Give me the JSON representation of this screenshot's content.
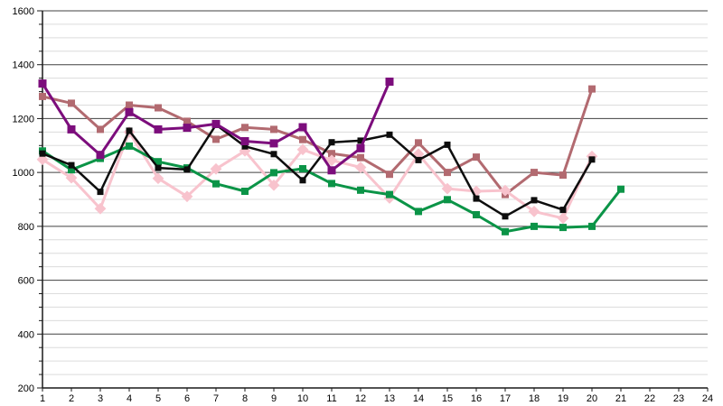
{
  "chart_data": {
    "type": "line",
    "title": "",
    "xlabel": "",
    "ylabel": "",
    "xlim": [
      1,
      24
    ],
    "ylim": [
      200,
      1600
    ],
    "x_tick_labels": [
      "1",
      "2",
      "3",
      "4",
      "5",
      "6",
      "7",
      "8",
      "9",
      "10",
      "11",
      "12",
      "13",
      "14",
      "15",
      "16",
      "17",
      "18",
      "19",
      "20",
      "21",
      "22",
      "23",
      "24"
    ],
    "y_tick_labels": [
      "200",
      "400",
      "600",
      "800",
      "1000",
      "1200",
      "1400",
      "1600"
    ],
    "y_major_step": 200,
    "y_minor_step": 50,
    "grid": {
      "minor_color": "#dcdcdc",
      "major_color": "#404040",
      "axis_color": "#1a1a1a"
    },
    "legend": "none",
    "x_start": 1,
    "series": [
      {
        "name": "rosybrown",
        "color": "#b26a70",
        "marker": "square",
        "values": [
          1282,
          1257,
          1160,
          1250,
          1240,
          1190,
          1123,
          1167,
          1160,
          1122,
          1070,
          1055,
          993,
          1110,
          1000,
          1057,
          918,
          1000,
          990,
          1310
        ]
      },
      {
        "name": "pink",
        "color": "#f8c3cd",
        "marker": "diamond",
        "values": [
          1048,
          980,
          866,
          1150,
          978,
          911,
          1013,
          1080,
          953,
          1085,
          1045,
          1019,
          905,
          1068,
          940,
          930,
          933,
          855,
          830,
          1060
        ]
      },
      {
        "name": "green",
        "color": "#0b9447",
        "marker": "square",
        "values": [
          1080,
          1010,
          1052,
          1098,
          1040,
          1017,
          958,
          930,
          999,
          1014,
          959,
          934,
          918,
          855,
          899,
          843,
          780,
          800,
          796,
          800,
          938
        ]
      },
      {
        "name": "black",
        "color": "#0d0d0d",
        "marker": "square",
        "values": [
          1070,
          1027,
          928,
          1155,
          1017,
          1011,
          1177,
          1097,
          1068,
          971,
          1112,
          1118,
          1140,
          1046,
          1103,
          903,
          837,
          897,
          861,
          1048
        ]
      },
      {
        "name": "purple",
        "color": "#7c0d7c",
        "marker": "square",
        "values": [
          1330,
          1160,
          1065,
          1224,
          1160,
          1166,
          1180,
          1116,
          1108,
          1168,
          1008,
          1090,
          1337
        ]
      }
    ]
  }
}
